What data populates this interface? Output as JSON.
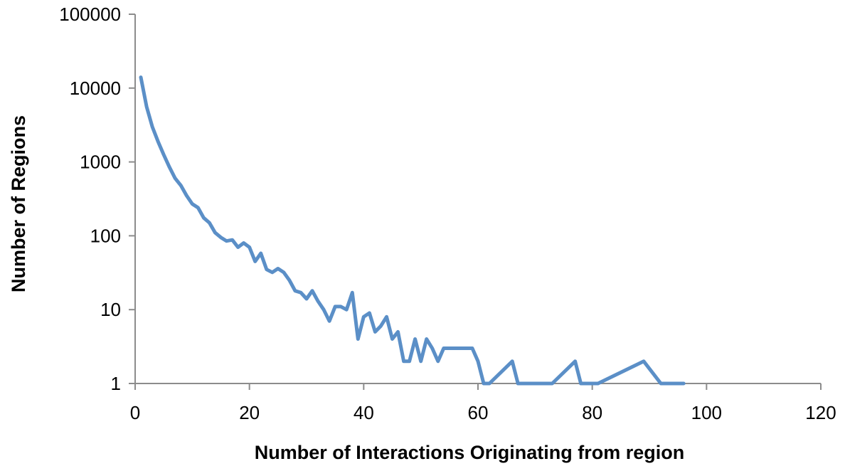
{
  "chart_data": {
    "type": "line",
    "title": "",
    "xlabel": "Number of Interactions Originating from region",
    "ylabel": "Number of Regions",
    "xlim": [
      0,
      120
    ],
    "ylim": [
      1,
      100000
    ],
    "y_scale": "log",
    "x_ticks": [
      "0",
      "20",
      "40",
      "60",
      "80",
      "100",
      "120"
    ],
    "y_ticks": [
      "1",
      "10",
      "100",
      "1000",
      "10000",
      "100000"
    ],
    "grid": false,
    "legend": "none",
    "line_color": "#5b8fc7",
    "series": [
      {
        "x": [
          1,
          2,
          3,
          4,
          5,
          6,
          7,
          8,
          9,
          10,
          11,
          12,
          13,
          14,
          15,
          16,
          17,
          18,
          19,
          20,
          21,
          22,
          23,
          24,
          25,
          26,
          27,
          28,
          29,
          30,
          31,
          32,
          33,
          34,
          35,
          36,
          37,
          38,
          39,
          40,
          41,
          42,
          43,
          44,
          45,
          46,
          47,
          48,
          49,
          50,
          51,
          52,
          53,
          54,
          55,
          56,
          57,
          58,
          59,
          60,
          61,
          62,
          66,
          67,
          73,
          77,
          78,
          81,
          89,
          92,
          96
        ],
        "values": [
          14000,
          5600,
          3000,
          1900,
          1250,
          850,
          600,
          480,
          350,
          270,
          240,
          175,
          150,
          110,
          95,
          85,
          88,
          70,
          80,
          70,
          45,
          58,
          35,
          32,
          36,
          32,
          25,
          18,
          17,
          14,
          18,
          13,
          10,
          7,
          11,
          11,
          10,
          17,
          4,
          8,
          9,
          5,
          6,
          8,
          4,
          5,
          2,
          2,
          4,
          2,
          4,
          3,
          2,
          3,
          3,
          3,
          3,
          3,
          3,
          2,
          1,
          1,
          2,
          1,
          1,
          2,
          1,
          1,
          2,
          1,
          1
        ]
      }
    ]
  }
}
